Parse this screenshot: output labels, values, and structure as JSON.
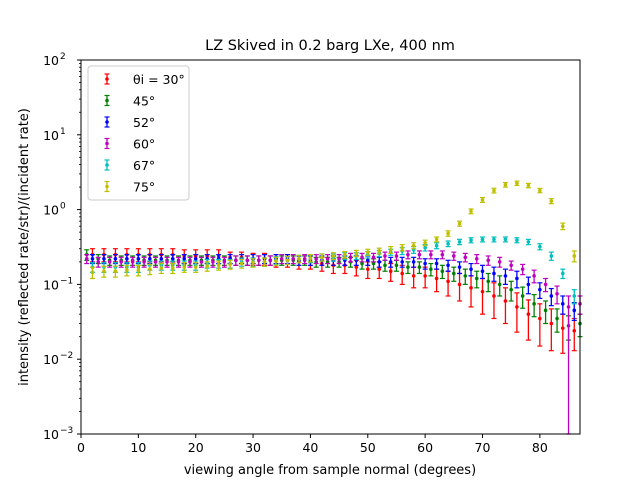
{
  "chart_data": {
    "type": "scatter",
    "title": "LZ Skived in 0.2 barg LXe, 400 nm",
    "xlabel": "viewing angle from sample normal (degrees)",
    "ylabel": "intensity (reflected rate/str)/(incident rate)",
    "xlim": [
      0,
      87
    ],
    "ylim": [
      0.001,
      100
    ],
    "yscale": "log",
    "x_ticks": [
      0,
      10,
      20,
      30,
      40,
      50,
      60,
      70,
      80
    ],
    "y_ticks": [
      {
        "value": 0.001,
        "base": "10",
        "exp": "−3"
      },
      {
        "value": 0.01,
        "base": "10",
        "exp": "−2"
      },
      {
        "value": 0.1,
        "base": "10",
        "exp": "−1"
      },
      {
        "value": 1,
        "base": "10",
        "exp": "0"
      },
      {
        "value": 10,
        "base": "10",
        "exp": "1"
      },
      {
        "value": 100,
        "base": "10",
        "exp": "2"
      }
    ],
    "legend_position": "top-left",
    "grid": false,
    "series": [
      {
        "name": "θi = 30°",
        "color": "#ff0000",
        "x": [
          2,
          4,
          6,
          8,
          10,
          12,
          14,
          16,
          18,
          20,
          22,
          24,
          26,
          28,
          30,
          32,
          34,
          36,
          38,
          40,
          42,
          44,
          46,
          48,
          50,
          52,
          54,
          56,
          58,
          60,
          62,
          64,
          66,
          68,
          70,
          72,
          74,
          76,
          78,
          80,
          82,
          84,
          86
        ],
        "y": [
          0.25,
          0.25,
          0.25,
          0.25,
          0.25,
          0.25,
          0.25,
          0.25,
          0.24,
          0.24,
          0.24,
          0.24,
          0.23,
          0.23,
          0.22,
          0.22,
          0.21,
          0.21,
          0.2,
          0.2,
          0.19,
          0.18,
          0.18,
          0.17,
          0.16,
          0.16,
          0.15,
          0.14,
          0.13,
          0.13,
          0.12,
          0.11,
          0.1,
          0.09,
          0.08,
          0.07,
          0.06,
          0.05,
          0.04,
          0.035,
          0.03,
          0.026,
          0.024
        ],
        "yerr_low": [
          0.05,
          0.05,
          0.05,
          0.05,
          0.05,
          0.05,
          0.05,
          0.05,
          0.05,
          0.05,
          0.05,
          0.05,
          0.04,
          0.04,
          0.04,
          0.04,
          0.04,
          0.04,
          0.04,
          0.04,
          0.04,
          0.04,
          0.04,
          0.04,
          0.04,
          0.04,
          0.04,
          0.04,
          0.04,
          0.04,
          0.04,
          0.04,
          0.04,
          0.04,
          0.04,
          0.035,
          0.03,
          0.027,
          0.022,
          0.02,
          0.017,
          0.014,
          0.011
        ],
        "yerr_high": [
          0.05,
          0.05,
          0.05,
          0.05,
          0.05,
          0.05,
          0.05,
          0.05,
          0.05,
          0.05,
          0.05,
          0.05,
          0.04,
          0.04,
          0.04,
          0.04,
          0.04,
          0.04,
          0.04,
          0.04,
          0.04,
          0.04,
          0.04,
          0.04,
          0.04,
          0.04,
          0.04,
          0.04,
          0.04,
          0.04,
          0.04,
          0.04,
          0.04,
          0.04,
          0.04,
          0.035,
          0.03,
          0.027,
          0.022,
          0.02,
          0.017,
          0.014,
          0.011
        ]
      },
      {
        "name": "45°",
        "color": "#008000",
        "x": [
          1,
          3,
          5,
          7,
          9,
          11,
          13,
          15,
          17,
          19,
          21,
          23,
          25,
          27,
          29,
          31,
          33,
          35,
          37,
          39,
          41,
          43,
          45,
          47,
          49,
          51,
          53,
          55,
          57,
          59,
          61,
          63,
          65,
          67,
          69,
          71,
          73,
          75,
          77,
          79,
          81,
          83,
          85,
          87
        ],
        "y": [
          0.25,
          0.22,
          0.21,
          0.21,
          0.21,
          0.21,
          0.21,
          0.21,
          0.21,
          0.21,
          0.21,
          0.21,
          0.21,
          0.21,
          0.21,
          0.21,
          0.21,
          0.21,
          0.21,
          0.21,
          0.2,
          0.2,
          0.2,
          0.2,
          0.19,
          0.19,
          0.18,
          0.18,
          0.17,
          0.17,
          0.16,
          0.15,
          0.14,
          0.13,
          0.12,
          0.11,
          0.1,
          0.085,
          0.07,
          0.055,
          0.045,
          0.035,
          0.028,
          0.03
        ],
        "yerr_low": [
          0.04,
          0.03,
          0.03,
          0.03,
          0.03,
          0.03,
          0.03,
          0.03,
          0.03,
          0.03,
          0.03,
          0.03,
          0.03,
          0.03,
          0.03,
          0.03,
          0.03,
          0.03,
          0.03,
          0.03,
          0.03,
          0.03,
          0.03,
          0.03,
          0.03,
          0.03,
          0.03,
          0.03,
          0.03,
          0.03,
          0.03,
          0.03,
          0.03,
          0.03,
          0.03,
          0.03,
          0.03,
          0.025,
          0.022,
          0.018,
          0.015,
          0.012,
          0.01,
          0.01
        ],
        "yerr_high": [
          0.04,
          0.03,
          0.03,
          0.03,
          0.03,
          0.03,
          0.03,
          0.03,
          0.03,
          0.03,
          0.03,
          0.03,
          0.03,
          0.03,
          0.03,
          0.03,
          0.03,
          0.03,
          0.03,
          0.03,
          0.03,
          0.03,
          0.03,
          0.03,
          0.03,
          0.03,
          0.03,
          0.03,
          0.03,
          0.03,
          0.03,
          0.03,
          0.03,
          0.03,
          0.03,
          0.03,
          0.03,
          0.025,
          0.022,
          0.018,
          0.015,
          0.012,
          0.01,
          0.01
        ]
      },
      {
        "name": "52°",
        "color": "#0000ff",
        "x": [
          2,
          4,
          6,
          8,
          10,
          12,
          14,
          16,
          18,
          20,
          22,
          24,
          26,
          28,
          30,
          32,
          34,
          36,
          38,
          40,
          42,
          44,
          46,
          48,
          50,
          52,
          54,
          56,
          58,
          60,
          62,
          64,
          66,
          68,
          70,
          72,
          74,
          76,
          78,
          80,
          82,
          84,
          86
        ],
        "y": [
          0.22,
          0.22,
          0.22,
          0.22,
          0.22,
          0.22,
          0.22,
          0.22,
          0.22,
          0.22,
          0.22,
          0.22,
          0.22,
          0.22,
          0.22,
          0.22,
          0.22,
          0.22,
          0.21,
          0.21,
          0.21,
          0.21,
          0.21,
          0.21,
          0.21,
          0.2,
          0.2,
          0.2,
          0.2,
          0.19,
          0.19,
          0.18,
          0.17,
          0.16,
          0.15,
          0.14,
          0.13,
          0.12,
          0.1,
          0.085,
          0.07,
          0.055,
          0.045
        ],
        "yerr_low": [
          0.03,
          0.03,
          0.03,
          0.03,
          0.03,
          0.03,
          0.03,
          0.03,
          0.03,
          0.03,
          0.03,
          0.03,
          0.03,
          0.03,
          0.03,
          0.03,
          0.03,
          0.03,
          0.03,
          0.03,
          0.03,
          0.03,
          0.03,
          0.03,
          0.03,
          0.03,
          0.03,
          0.03,
          0.03,
          0.03,
          0.03,
          0.03,
          0.03,
          0.03,
          0.03,
          0.03,
          0.03,
          0.03,
          0.025,
          0.02,
          0.018,
          0.015,
          0.012
        ],
        "yerr_high": [
          0.03,
          0.03,
          0.03,
          0.03,
          0.03,
          0.03,
          0.03,
          0.03,
          0.03,
          0.03,
          0.03,
          0.03,
          0.03,
          0.03,
          0.03,
          0.03,
          0.03,
          0.03,
          0.03,
          0.03,
          0.03,
          0.03,
          0.03,
          0.03,
          0.03,
          0.03,
          0.03,
          0.03,
          0.03,
          0.03,
          0.03,
          0.03,
          0.03,
          0.03,
          0.03,
          0.03,
          0.03,
          0.03,
          0.025,
          0.02,
          0.018,
          0.015,
          0.012
        ]
      },
      {
        "name": "60°",
        "color": "#bf00bf",
        "x": [
          1,
          3,
          5,
          7,
          9,
          11,
          13,
          15,
          17,
          19,
          21,
          23,
          25,
          27,
          29,
          31,
          33,
          35,
          37,
          39,
          41,
          43,
          45,
          47,
          49,
          51,
          53,
          55,
          57,
          59,
          61,
          63,
          65,
          67,
          69,
          71,
          73,
          75,
          77,
          79,
          81,
          83,
          85,
          87
        ],
        "y": [
          0.22,
          0.2,
          0.2,
          0.2,
          0.2,
          0.2,
          0.2,
          0.2,
          0.2,
          0.2,
          0.2,
          0.2,
          0.2,
          0.21,
          0.21,
          0.21,
          0.21,
          0.22,
          0.22,
          0.22,
          0.22,
          0.22,
          0.22,
          0.23,
          0.23,
          0.23,
          0.24,
          0.24,
          0.25,
          0.25,
          0.25,
          0.25,
          0.24,
          0.23,
          0.22,
          0.21,
          0.2,
          0.18,
          0.16,
          0.13,
          0.1,
          0.075,
          0.05,
          0.055
        ],
        "yerr_low": [
          0.03,
          0.03,
          0.03,
          0.03,
          0.03,
          0.03,
          0.03,
          0.03,
          0.03,
          0.03,
          0.03,
          0.03,
          0.03,
          0.03,
          0.03,
          0.03,
          0.03,
          0.03,
          0.03,
          0.03,
          0.03,
          0.03,
          0.03,
          0.03,
          0.03,
          0.03,
          0.03,
          0.03,
          0.03,
          0.03,
          0.03,
          0.03,
          0.03,
          0.03,
          0.03,
          0.03,
          0.03,
          0.025,
          0.025,
          0.025,
          0.02,
          0.02,
          0.049,
          0.015
        ],
        "yerr_high": [
          0.03,
          0.03,
          0.03,
          0.03,
          0.03,
          0.03,
          0.03,
          0.03,
          0.03,
          0.03,
          0.03,
          0.03,
          0.03,
          0.03,
          0.03,
          0.03,
          0.03,
          0.03,
          0.03,
          0.03,
          0.03,
          0.03,
          0.03,
          0.03,
          0.03,
          0.03,
          0.03,
          0.03,
          0.03,
          0.03,
          0.03,
          0.03,
          0.03,
          0.03,
          0.03,
          0.03,
          0.03,
          0.025,
          0.025,
          0.025,
          0.02,
          0.02,
          0.02,
          0.015
        ]
      },
      {
        "name": "67°",
        "color": "#00bfbf",
        "x": [
          2,
          4,
          6,
          8,
          10,
          12,
          14,
          16,
          18,
          20,
          22,
          24,
          26,
          28,
          30,
          32,
          34,
          36,
          38,
          40,
          42,
          44,
          46,
          48,
          50,
          52,
          54,
          56,
          58,
          60,
          62,
          64,
          66,
          68,
          70,
          72,
          74,
          76,
          78,
          80,
          82,
          84,
          86
        ],
        "y": [
          0.17,
          0.17,
          0.17,
          0.17,
          0.17,
          0.18,
          0.18,
          0.18,
          0.18,
          0.18,
          0.19,
          0.19,
          0.19,
          0.2,
          0.2,
          0.2,
          0.21,
          0.21,
          0.22,
          0.22,
          0.23,
          0.23,
          0.24,
          0.24,
          0.25,
          0.26,
          0.27,
          0.28,
          0.29,
          0.31,
          0.33,
          0.35,
          0.37,
          0.39,
          0.4,
          0.4,
          0.4,
          0.39,
          0.37,
          0.32,
          0.24,
          0.14,
          0.07
        ],
        "yerr_low": [
          0.025,
          0.025,
          0.025,
          0.025,
          0.025,
          0.025,
          0.025,
          0.025,
          0.025,
          0.025,
          0.025,
          0.025,
          0.025,
          0.025,
          0.025,
          0.025,
          0.025,
          0.025,
          0.025,
          0.025,
          0.025,
          0.025,
          0.025,
          0.025,
          0.025,
          0.025,
          0.025,
          0.03,
          0.03,
          0.03,
          0.03,
          0.03,
          0.03,
          0.03,
          0.03,
          0.03,
          0.03,
          0.03,
          0.03,
          0.03,
          0.03,
          0.02,
          0.015
        ],
        "yerr_high": [
          0.025,
          0.025,
          0.025,
          0.025,
          0.025,
          0.025,
          0.025,
          0.025,
          0.025,
          0.025,
          0.025,
          0.025,
          0.025,
          0.025,
          0.025,
          0.025,
          0.025,
          0.025,
          0.025,
          0.025,
          0.025,
          0.025,
          0.025,
          0.025,
          0.025,
          0.025,
          0.025,
          0.03,
          0.03,
          0.03,
          0.03,
          0.03,
          0.03,
          0.03,
          0.03,
          0.03,
          0.03,
          0.03,
          0.03,
          0.03,
          0.03,
          0.02,
          0.015
        ]
      },
      {
        "name": "75°",
        "color": "#bfbf00",
        "x": [
          2,
          4,
          6,
          8,
          10,
          12,
          14,
          16,
          18,
          20,
          22,
          24,
          26,
          28,
          30,
          32,
          34,
          36,
          38,
          40,
          42,
          44,
          46,
          48,
          50,
          52,
          54,
          56,
          58,
          60,
          62,
          64,
          66,
          68,
          70,
          72,
          74,
          76,
          78,
          80,
          82,
          84,
          86
        ],
        "y": [
          0.145,
          0.15,
          0.15,
          0.155,
          0.155,
          0.16,
          0.165,
          0.165,
          0.17,
          0.17,
          0.175,
          0.18,
          0.185,
          0.19,
          0.195,
          0.2,
          0.205,
          0.21,
          0.22,
          0.225,
          0.23,
          0.24,
          0.25,
          0.26,
          0.27,
          0.28,
          0.29,
          0.31,
          0.33,
          0.36,
          0.4,
          0.48,
          0.65,
          0.95,
          1.35,
          1.8,
          2.15,
          2.25,
          2.1,
          1.8,
          1.3,
          0.6,
          0.24
        ],
        "yerr_low": [
          0.025,
          0.025,
          0.025,
          0.025,
          0.025,
          0.025,
          0.025,
          0.025,
          0.025,
          0.025,
          0.025,
          0.025,
          0.025,
          0.025,
          0.025,
          0.025,
          0.025,
          0.025,
          0.025,
          0.025,
          0.025,
          0.025,
          0.025,
          0.025,
          0.025,
          0.025,
          0.03,
          0.03,
          0.03,
          0.03,
          0.03,
          0.04,
          0.05,
          0.07,
          0.1,
          0.13,
          0.15,
          0.15,
          0.14,
          0.12,
          0.1,
          0.06,
          0.04
        ],
        "yerr_high": [
          0.025,
          0.025,
          0.025,
          0.025,
          0.025,
          0.025,
          0.025,
          0.025,
          0.025,
          0.025,
          0.025,
          0.025,
          0.025,
          0.025,
          0.025,
          0.025,
          0.025,
          0.025,
          0.025,
          0.025,
          0.025,
          0.025,
          0.025,
          0.025,
          0.025,
          0.025,
          0.03,
          0.03,
          0.03,
          0.03,
          0.03,
          0.04,
          0.05,
          0.07,
          0.1,
          0.13,
          0.15,
          0.15,
          0.14,
          0.12,
          0.1,
          0.06,
          0.04
        ]
      }
    ]
  }
}
